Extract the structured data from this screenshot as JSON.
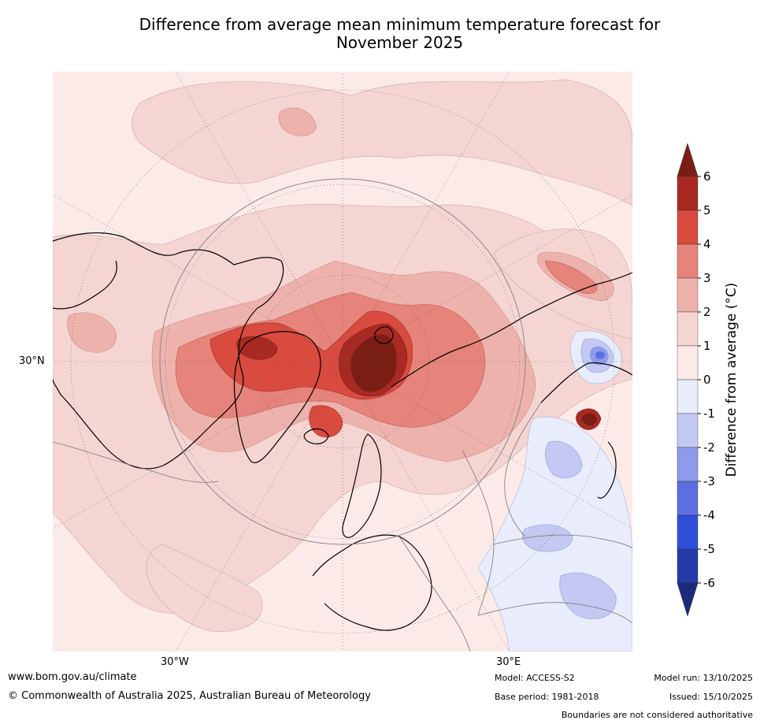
{
  "title": {
    "line1": "Difference from average mean minimum temperature forecast for",
    "line2": "November 2025"
  },
  "map": {
    "projection": "polar-stereographic (north pole)",
    "graticule_labels": {
      "left": "30°N",
      "bottom_west": "30°W",
      "bottom_east": "30°E"
    }
  },
  "legend": {
    "title": "Difference from average (°C)",
    "ticks": [
      "6",
      "5",
      "4",
      "3",
      "2",
      "1",
      "0",
      "-1",
      "-2",
      "-3",
      "-4",
      "-5",
      "-6"
    ],
    "extend": "both",
    "colors": [
      {
        "range": ">6",
        "hex": "#7a1e14"
      },
      {
        "range": "5 to 6",
        "hex": "#a82a22"
      },
      {
        "range": "4 to 5",
        "hex": "#d94a3f"
      },
      {
        "range": "3 to 4",
        "hex": "#e6837a"
      },
      {
        "range": "2 to 3",
        "hex": "#eeb2ac"
      },
      {
        "range": "1 to 2",
        "hex": "#f5d5d2"
      },
      {
        "range": "0 to 1",
        "hex": "#fceae8"
      },
      {
        "range": "-1 to 0",
        "hex": "#e9ecfa"
      },
      {
        "range": "-2 to -1",
        "hex": "#c3c9f2"
      },
      {
        "range": "-3 to -2",
        "hex": "#8f9aea"
      },
      {
        "range": "-4 to -3",
        "hex": "#5d6fe0"
      },
      {
        "range": "-5 to -4",
        "hex": "#2f4fd8"
      },
      {
        "range": "-6 to -5",
        "hex": "#243aa8"
      },
      {
        "range": "<-6",
        "hex": "#1c2a7d"
      }
    ]
  },
  "footer": {
    "website": "www.bom.gov.au/climate",
    "copyright": "© Commonwealth of Australia 2025, Australian Bureau of Meteorology",
    "model": "Model: ACCESS-S2",
    "base_period": "Base period: 1981-2018",
    "model_run": "Model run: 13/10/2025",
    "issued": "Issued: 15/10/2025",
    "disclaimer": "Boundaries are not considered authoritative"
  }
}
